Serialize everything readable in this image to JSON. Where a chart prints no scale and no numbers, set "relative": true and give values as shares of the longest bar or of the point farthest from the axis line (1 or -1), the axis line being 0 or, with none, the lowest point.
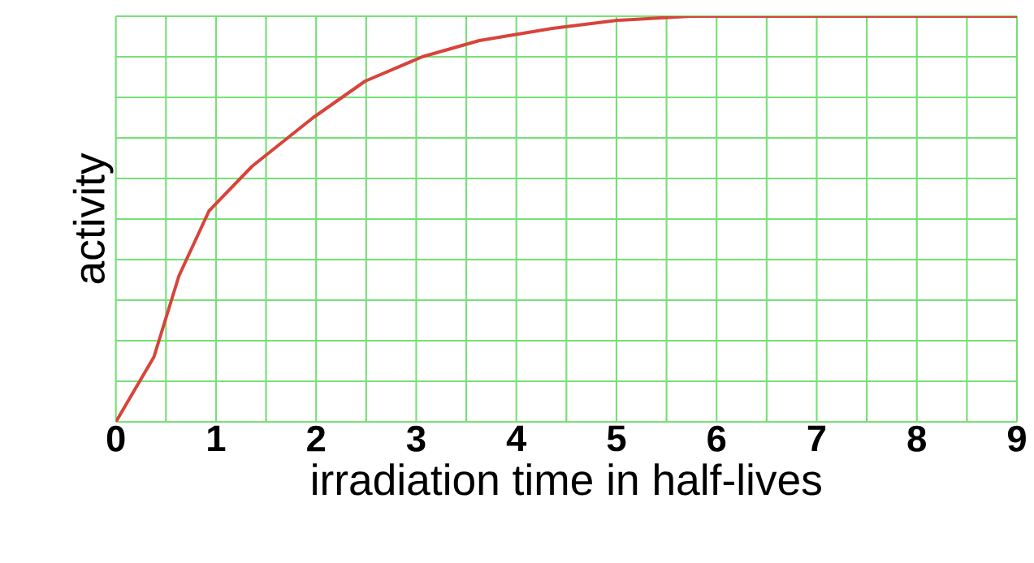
{
  "chart_data": {
    "type": "line",
    "xlabel": "irradiation time in half-lives",
    "ylabel": "activity",
    "relative": true,
    "x": [
      0,
      0.38,
      0.63,
      0.93,
      1.36,
      1.97,
      2.49,
      3.06,
      3.63,
      4.36,
      5.01,
      5.74,
      9
    ],
    "values": [
      0,
      0.16,
      0.36,
      0.52,
      0.63,
      0.75,
      0.84,
      0.9,
      0.94,
      0.97,
      0.99,
      1.0,
      1.0
    ],
    "color": "#d8443a",
    "xlim": [
      0,
      9
    ],
    "xticks": [
      0,
      1,
      2,
      3,
      4,
      5,
      6,
      7,
      8,
      9
    ],
    "grid": true
  }
}
